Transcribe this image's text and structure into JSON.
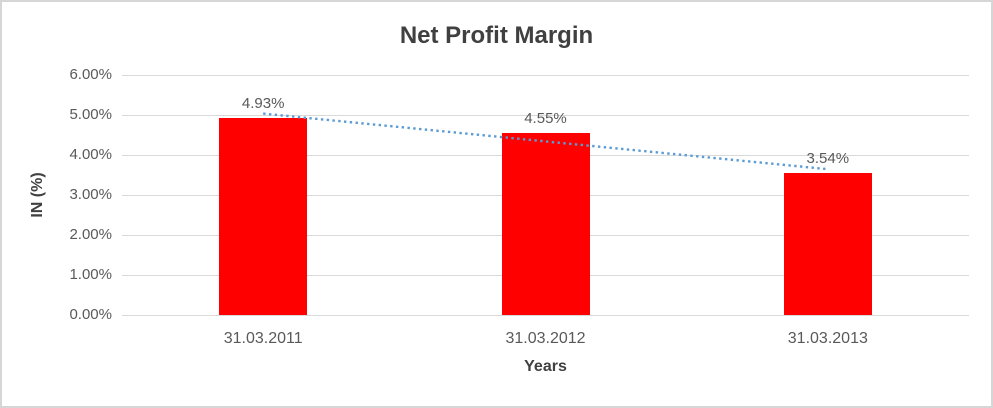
{
  "chart_data": {
    "type": "bar",
    "title": "Net Profit Margin",
    "categories": [
      "31.03.2011",
      "31.03.2012",
      "31.03.2013"
    ],
    "values": [
      4.93,
      4.55,
      3.54
    ],
    "data_labels": [
      "4.93%",
      "4.55%",
      "3.54%"
    ],
    "xlabel": "Years",
    "ylabel": "IN (%)",
    "ylim": [
      0,
      6
    ],
    "ytick_step": 1,
    "yticks": [
      "0.00%",
      "1.00%",
      "2.00%",
      "3.00%",
      "4.00%",
      "5.00%",
      "6.00%"
    ],
    "legend": "none",
    "grid": true,
    "trendline": {
      "type": "linear",
      "style": "dotted"
    },
    "colors": {
      "bar": "#ff0000",
      "trendline": "#5b9bd5",
      "gridline": "#d9d9d9",
      "title_text": "#404040",
      "tick_text": "#595959"
    }
  }
}
